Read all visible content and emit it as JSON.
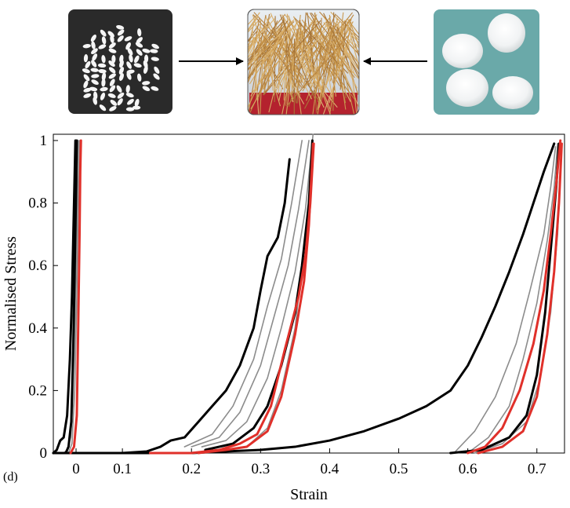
{
  "figure": {
    "panel_label": "(d)",
    "images": [
      {
        "name": "rice-grains-photo",
        "description_icon": "ellipse-grains"
      },
      {
        "name": "wooden-sticks-photo",
        "description_icon": "stick-bundle"
      },
      {
        "name": "cotton-balls-photo",
        "description_icon": "cotton-balls"
      }
    ],
    "arrow_color": "#000000"
  },
  "chart_data": {
    "type": "line",
    "xlabel": "Strain",
    "ylabel": "Normalised Stress",
    "xlim": [
      0,
      0.74
    ],
    "ylim": [
      0,
      1.02
    ],
    "xticks": [
      0,
      0.1,
      0.2,
      0.3,
      0.4,
      0.5,
      0.6,
      0.7
    ],
    "xtick_labels": [
      "0",
      "0.1",
      "0.2",
      "0.3",
      "0.4",
      "0.5",
      "0.6",
      "0.7"
    ],
    "yticks": [
      0,
      0.2,
      0.4,
      0.6,
      0.8,
      1
    ],
    "ytick_labels": [
      "0",
      "0.2",
      "0.4",
      "0.6",
      "0.8",
      "1"
    ],
    "grid": false,
    "colors": {
      "black": "#000000",
      "gray": "#8c8c8c",
      "red": "#e0302a"
    },
    "series": [
      {
        "color": "black",
        "x": [
          0.0,
          0.005,
          0.01,
          0.015,
          0.02,
          0.024,
          0.027,
          0.029,
          0.031,
          0.032
        ],
        "y": [
          0.0,
          0.01,
          0.04,
          0.05,
          0.12,
          0.3,
          0.5,
          0.7,
          0.9,
          1.0
        ]
      },
      {
        "color": "gray",
        "x": [
          0.015,
          0.02,
          0.025,
          0.028,
          0.031,
          0.034,
          0.035,
          0.036
        ],
        "y": [
          0.0,
          0.01,
          0.05,
          0.15,
          0.4,
          0.7,
          0.9,
          1.0
        ]
      },
      {
        "color": "black",
        "x": [
          0.018,
          0.022,
          0.026,
          0.029,
          0.031,
          0.033,
          0.034
        ],
        "y": [
          0.0,
          0.02,
          0.1,
          0.35,
          0.6,
          0.85,
          1.0
        ]
      },
      {
        "color": "gray",
        "x": [
          0.022,
          0.027,
          0.031,
          0.034,
          0.036,
          0.038
        ],
        "y": [
          0.0,
          0.03,
          0.2,
          0.5,
          0.8,
          1.0
        ]
      },
      {
        "color": "red",
        "x": [
          0.025,
          0.03,
          0.034,
          0.036,
          0.038,
          0.039,
          0.04
        ],
        "y": [
          0.0,
          0.02,
          0.12,
          0.4,
          0.7,
          0.9,
          1.0
        ]
      },
      {
        "color": "black",
        "x": [
          0.0,
          0.1,
          0.135,
          0.155,
          0.17,
          0.19,
          0.21,
          0.23,
          0.25,
          0.27,
          0.29,
          0.3,
          0.31,
          0.325,
          0.335,
          0.342
        ],
        "y": [
          0.0,
          0.0,
          0.005,
          0.02,
          0.04,
          0.05,
          0.1,
          0.15,
          0.2,
          0.28,
          0.4,
          0.52,
          0.63,
          0.69,
          0.8,
          0.94
        ]
      },
      {
        "color": "gray",
        "x": [
          0.19,
          0.23,
          0.26,
          0.29,
          0.31,
          0.33,
          0.345,
          0.36
        ],
        "y": [
          0.02,
          0.06,
          0.15,
          0.3,
          0.47,
          0.62,
          0.8,
          1.0
        ]
      },
      {
        "color": "gray",
        "x": [
          0.2,
          0.24,
          0.27,
          0.3,
          0.32,
          0.34,
          0.355,
          0.37
        ],
        "y": [
          0.02,
          0.05,
          0.13,
          0.28,
          0.44,
          0.6,
          0.78,
          1.0
        ]
      },
      {
        "color": "gray",
        "x": [
          0.215,
          0.25,
          0.28,
          0.31,
          0.33,
          0.35,
          0.365,
          0.376
        ],
        "y": [
          0.02,
          0.04,
          0.1,
          0.24,
          0.4,
          0.58,
          0.78,
          1.02
        ]
      },
      {
        "color": "black",
        "x": [
          0.22,
          0.26,
          0.29,
          0.31,
          0.33,
          0.35,
          0.36,
          0.37,
          0.375
        ],
        "y": [
          0.01,
          0.03,
          0.08,
          0.15,
          0.28,
          0.45,
          0.6,
          0.8,
          1.0
        ]
      },
      {
        "color": "red",
        "x": [
          0.14,
          0.2,
          0.24,
          0.27,
          0.295,
          0.315,
          0.335,
          0.355,
          0.365,
          0.372,
          0.377
        ],
        "y": [
          0.0,
          0.0,
          0.01,
          0.03,
          0.06,
          0.15,
          0.33,
          0.5,
          0.63,
          0.8,
          0.99
        ]
      },
      {
        "color": "red",
        "x": [
          0.21,
          0.25,
          0.28,
          0.31,
          0.33,
          0.35,
          0.363,
          0.37,
          0.376
        ],
        "y": [
          0.0,
          0.01,
          0.02,
          0.07,
          0.18,
          0.38,
          0.55,
          0.73,
          0.99
        ]
      },
      {
        "color": "gray",
        "x": [
          0.28,
          0.31,
          0.33,
          0.35,
          0.36,
          0.37
        ],
        "y": [
          0.02,
          0.08,
          0.2,
          0.4,
          0.6,
          0.8
        ]
      },
      {
        "color": "black",
        "x": [
          0.0,
          0.2,
          0.3,
          0.35,
          0.4,
          0.45,
          0.5,
          0.54,
          0.575,
          0.6,
          0.62,
          0.64,
          0.66,
          0.68,
          0.695,
          0.71,
          0.72,
          0.725
        ],
        "y": [
          0.0,
          0.0,
          0.01,
          0.02,
          0.04,
          0.07,
          0.11,
          0.15,
          0.2,
          0.28,
          0.37,
          0.47,
          0.58,
          0.7,
          0.8,
          0.9,
          0.96,
          0.99
        ]
      },
      {
        "color": "gray",
        "x": [
          0.58,
          0.61,
          0.64,
          0.67,
          0.69,
          0.71,
          0.72,
          0.727
        ],
        "y": [
          0.0,
          0.07,
          0.18,
          0.35,
          0.52,
          0.7,
          0.85,
          0.98
        ]
      },
      {
        "color": "gray",
        "x": [
          0.6,
          0.63,
          0.66,
          0.68,
          0.7,
          0.715,
          0.725,
          0.73
        ],
        "y": [
          0.0,
          0.05,
          0.15,
          0.3,
          0.48,
          0.68,
          0.85,
          0.99
        ]
      },
      {
        "color": "black",
        "x": [
          0.575,
          0.62,
          0.66,
          0.685,
          0.7,
          0.712,
          0.72,
          0.728,
          0.732
        ],
        "y": [
          0.0,
          0.01,
          0.05,
          0.12,
          0.25,
          0.45,
          0.65,
          0.85,
          0.99
        ]
      },
      {
        "color": "red",
        "x": [
          0.6,
          0.625,
          0.65,
          0.675,
          0.695,
          0.71,
          0.72,
          0.728,
          0.734
        ],
        "y": [
          0.0,
          0.02,
          0.08,
          0.2,
          0.35,
          0.52,
          0.7,
          0.86,
          1.0
        ]
      },
      {
        "color": "red",
        "x": [
          0.615,
          0.65,
          0.68,
          0.7,
          0.715,
          0.725,
          0.732,
          0.736
        ],
        "y": [
          0.0,
          0.02,
          0.07,
          0.18,
          0.38,
          0.58,
          0.8,
          0.99
        ]
      },
      {
        "color": "gray",
        "x": [
          0.61,
          0.65,
          0.685,
          0.705,
          0.72,
          0.73,
          0.735
        ],
        "y": [
          0.0,
          0.03,
          0.1,
          0.24,
          0.45,
          0.7,
          0.95
        ]
      }
    ]
  }
}
